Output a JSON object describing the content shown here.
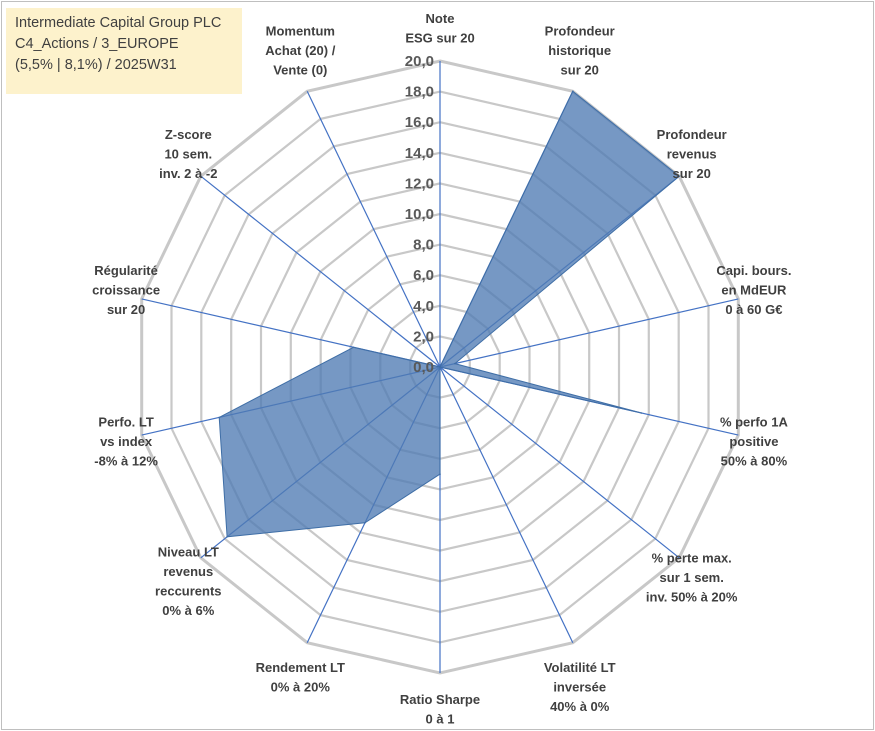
{
  "info": {
    "line1": "Intermediate Capital Group PLC",
    "line2": "C4_Actions / 3_EUROPE",
    "line3": "(5,5% | 8,1%) / 2025W31"
  },
  "chart_data": {
    "type": "radar",
    "rmin": 0,
    "rmax": 20,
    "tick_step": 2,
    "ticks": [
      "0,0",
      "2,0",
      "4,0",
      "6,0",
      "8,0",
      "10,0",
      "12,0",
      "14,0",
      "16,0",
      "18,0",
      "20,0"
    ],
    "grid": true,
    "fill_color": "#4f7bb3",
    "grid_color": "#c8c8c8",
    "spoke_color": "#4472c4",
    "axes": [
      {
        "label": [
          "Note",
          "ESG sur 20"
        ],
        "value": 0
      },
      {
        "label": [
          "Profondeur",
          "historique",
          "sur 20"
        ],
        "value": 20
      },
      {
        "label": [
          "Profondeur",
          "revenus",
          "sur 20"
        ],
        "value": 20
      },
      {
        "label": [
          "Capi. bours.",
          "en MdEUR",
          "0 à 60 G€"
        ],
        "value": 1
      },
      {
        "label": [
          "% perfo 1A",
          "positive",
          "50% à 80%"
        ],
        "value": 13.5
      },
      {
        "label": [
          "% perte max.",
          "sur 1 sem.",
          "inv. 50% à 20%"
        ],
        "value": 0
      },
      {
        "label": [
          "Volatilité LT",
          "inversée",
          "40% à 0%"
        ],
        "value": 0
      },
      {
        "label": [
          "Ratio Sharpe",
          "0 à 1"
        ],
        "value": 7
      },
      {
        "label": [
          "Rendement LT",
          "0% à 20%"
        ],
        "value": 11.3
      },
      {
        "label": [
          "Niveau LT",
          "revenus",
          "reccurents",
          "0% à 6%"
        ],
        "value": 17.8
      },
      {
        "label": [
          "Perfo. LT",
          "vs index",
          "-8% à 12%"
        ],
        "value": 14.8
      },
      {
        "label": [
          "Régularité",
          "croissance",
          "sur 20"
        ],
        "value": 5.8
      },
      {
        "label": [
          "Z-score",
          "10 sem.",
          "inv. 2 à -2"
        ],
        "value": 0
      },
      {
        "label": [
          "Momentum",
          "Achat (20) /",
          "Vente (0)"
        ],
        "value": 0
      }
    ]
  }
}
